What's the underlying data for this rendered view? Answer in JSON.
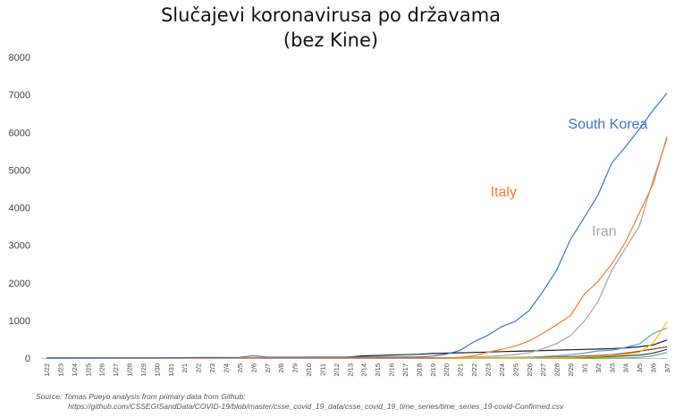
{
  "chart_data": {
    "type": "line",
    "title_lines": [
      "Slučajevi koronavirusa po državama",
      "(bez Kine)"
    ],
    "xlabel": "",
    "ylabel": "",
    "ylim": [
      0,
      8000
    ],
    "yticks": [
      "0",
      "1000",
      "2000",
      "3000",
      "4000",
      "5000",
      "6000",
      "7000",
      "8000"
    ],
    "grid": false,
    "categories": [
      "1/22",
      "1/23",
      "1/24",
      "1/25",
      "1/26",
      "1/27",
      "1/28",
      "1/29",
      "1/30",
      "1/31",
      "2/1",
      "2/2",
      "2/3",
      "2/4",
      "2/5",
      "2/6",
      "2/7",
      "2/8",
      "2/9",
      "2/10",
      "2/11",
      "2/12",
      "2/13",
      "2/14",
      "2/15",
      "2/16",
      "2/17",
      "2/18",
      "2/19",
      "2/20",
      "2/21",
      "2/22",
      "2/23",
      "2/24",
      "2/25",
      "2/26",
      "2/27",
      "2/28",
      "2/29",
      "3/1",
      "3/2",
      "3/3",
      "3/4",
      "3/5",
      "3/6",
      "3/7"
    ],
    "series": [
      {
        "name": "South Korea",
        "color": "#4472c4",
        "values": [
          1,
          1,
          2,
          2,
          3,
          4,
          4,
          4,
          4,
          11,
          12,
          15,
          15,
          16,
          19,
          61,
          23,
          24,
          24,
          27,
          28,
          28,
          28,
          28,
          28,
          29,
          30,
          31,
          51,
          104,
          204,
          433,
          602,
          833,
          977,
          1261,
          1766,
          2337,
          3150,
          3736,
          4335,
          5186,
          5621,
          6088,
          6593,
          7041
        ]
      },
      {
        "name": "Italy",
        "color": "#ed7d31",
        "values": [
          0,
          0,
          0,
          0,
          0,
          0,
          0,
          0,
          0,
          2,
          2,
          2,
          2,
          2,
          2,
          2,
          3,
          3,
          3,
          3,
          3,
          3,
          3,
          3,
          3,
          3,
          3,
          3,
          3,
          3,
          20,
          62,
          155,
          229,
          322,
          453,
          655,
          888,
          1128,
          1694,
          2036,
          2502,
          3089,
          3858,
          4636,
          5883
        ]
      },
      {
        "name": "Iran",
        "color": "#a5a5a5",
        "values": [
          0,
          0,
          0,
          0,
          0,
          0,
          0,
          0,
          0,
          0,
          0,
          0,
          0,
          0,
          0,
          0,
          0,
          0,
          0,
          0,
          0,
          0,
          0,
          0,
          0,
          0,
          0,
          0,
          2,
          5,
          18,
          28,
          43,
          61,
          95,
          139,
          245,
          388,
          593,
          978,
          1501,
          2336,
          2922,
          3513,
          4747,
          5823
        ]
      },
      {
        "name": "",
        "color": "#ffc000",
        "values": [
          0,
          0,
          0,
          0,
          0,
          0,
          0,
          0,
          0,
          0,
          0,
          0,
          0,
          0,
          0,
          0,
          0,
          0,
          0,
          0,
          0,
          0,
          0,
          0,
          0,
          0,
          0,
          0,
          0,
          0,
          0,
          0,
          0,
          0,
          1,
          3,
          5,
          10,
          15,
          30,
          48,
          70,
          100,
          150,
          400,
          960
        ]
      },
      {
        "name": "",
        "color": "#5b9bd5",
        "values": [
          0,
          0,
          0,
          0,
          0,
          0,
          0,
          0,
          0,
          0,
          0,
          0,
          0,
          0,
          0,
          0,
          0,
          0,
          0,
          0,
          0,
          0,
          0,
          0,
          0,
          1,
          2,
          3,
          4,
          5,
          8,
          10,
          12,
          15,
          18,
          25,
          40,
          60,
          90,
          130,
          191,
          204,
          285,
          377,
          653,
          800
        ]
      },
      {
        "name": "",
        "color": "#1f1f1f",
        "values": [
          2,
          2,
          2,
          2,
          2,
          2,
          2,
          2,
          2,
          2,
          2,
          2,
          2,
          2,
          2,
          2,
          2,
          2,
          2,
          3,
          5,
          10,
          30,
          60,
          70,
          80,
          90,
          100,
          120,
          130,
          140,
          150,
          160,
          170,
          180,
          190,
          200,
          210,
          220,
          230,
          240,
          250,
          270,
          300,
          350,
          480
        ]
      },
      {
        "name": "",
        "color": "#264478",
        "values": [
          0,
          0,
          1,
          1,
          2,
          3,
          5,
          5,
          5,
          6,
          6,
          6,
          6,
          6,
          6,
          6,
          6,
          6,
          6,
          6,
          6,
          6,
          6,
          6,
          6,
          6,
          6,
          6,
          6,
          6,
          6,
          6,
          6,
          6,
          6,
          6,
          6,
          12,
          17,
          22,
          30,
          40,
          60,
          80,
          130,
          230
        ]
      },
      {
        "name": "",
        "color": "#70ad47",
        "values": [
          0,
          0,
          0,
          0,
          0,
          0,
          0,
          0,
          0,
          0,
          0,
          0,
          0,
          0,
          0,
          0,
          0,
          0,
          0,
          0,
          0,
          0,
          0,
          0,
          0,
          0,
          0,
          0,
          0,
          0,
          0,
          0,
          0,
          0,
          0,
          0,
          0,
          0,
          0,
          0,
          0,
          0,
          5,
          20,
          60,
          150
        ]
      },
      {
        "name": "",
        "color": "#9e480e",
        "values": [
          0,
          0,
          0,
          0,
          0,
          0,
          0,
          0,
          0,
          0,
          0,
          0,
          0,
          0,
          0,
          0,
          0,
          0,
          0,
          0,
          0,
          0,
          0,
          0,
          0,
          0,
          0,
          0,
          0,
          1,
          1,
          2,
          3,
          5,
          8,
          12,
          18,
          25,
          40,
          55,
          70,
          90,
          130,
          180,
          240,
          300
        ]
      }
    ],
    "annotations": [
      {
        "text": "South Korea",
        "series": "South Korea"
      },
      {
        "text": "Italy",
        "series": "Italy"
      },
      {
        "text": "Iran",
        "series": "Iran"
      }
    ],
    "source_lines": [
      "Source: Tomas Pueyo analysis from primary data from Github:",
      "https://github.com/CSSEGISandData/COVID-19/blob/master/csse_covid_19_data/csse_covid_19_time_series/time_series_19-covid-Confirmed.csv"
    ]
  }
}
